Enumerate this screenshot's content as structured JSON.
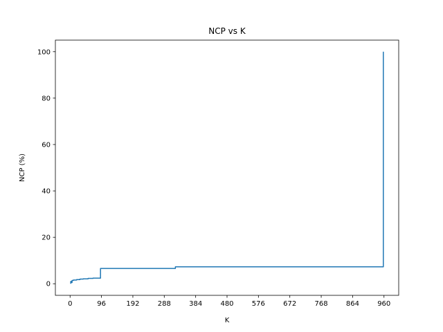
{
  "chart_data": {
    "type": "line",
    "title": "NCP vs K",
    "xlabel": "K",
    "ylabel": "NCP (%)",
    "xlim": [
      -45,
      1005
    ],
    "ylim": [
      -5,
      105
    ],
    "x_ticks": [
      0,
      96,
      192,
      288,
      384,
      480,
      576,
      672,
      768,
      864,
      960
    ],
    "y_ticks": [
      0,
      20,
      40,
      60,
      80,
      100
    ],
    "grid": false,
    "line_color": "#1f77b4",
    "series": [
      {
        "x": [
          2,
          2,
          4,
          4,
          6,
          6,
          10,
          10,
          20,
          20,
          30,
          30,
          40,
          40,
          55,
          55,
          70,
          70,
          93,
          93,
          322,
          322,
          958,
          958
        ],
        "y": [
          0,
          1,
          1,
          0.5,
          0.5,
          1.4,
          1.4,
          1.6,
          1.6,
          1.8,
          1.8,
          2.0,
          2.0,
          2.1,
          2.1,
          2.3,
          2.3,
          2.4,
          2.4,
          6.6,
          6.6,
          7.3,
          7.3,
          100
        ]
      }
    ]
  }
}
